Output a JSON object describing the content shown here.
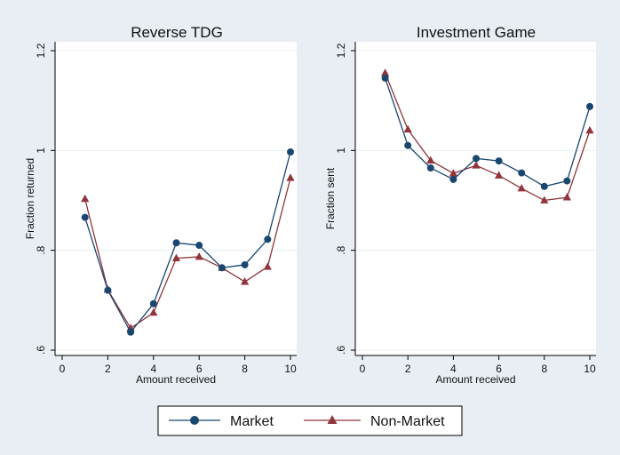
{
  "chart_data": [
    {
      "type": "line",
      "title": "Reverse TDG",
      "xlabel": "Amount received",
      "ylabel": "Fraction returned",
      "xlim": [
        0,
        10
      ],
      "ylim": [
        0.6,
        1.2
      ],
      "xticks": [
        0,
        2,
        4,
        6,
        8,
        10
      ],
      "xtick_labels": [
        "0",
        "2",
        "4",
        "6",
        "8",
        "10"
      ],
      "yticks": [
        0.6,
        0.8,
        1.0,
        1.2
      ],
      "ytick_labels": [
        ".6",
        ".8",
        "1",
        "1.2"
      ],
      "x": [
        1,
        2,
        3,
        4,
        5,
        6,
        7,
        8,
        9,
        10
      ],
      "series": [
        {
          "name": "Market",
          "values": [
            0.866,
            0.72,
            0.636,
            0.693,
            0.815,
            0.81,
            0.765,
            0.771,
            0.822,
            0.997
          ]
        },
        {
          "name": "Non-Market",
          "values": [
            0.903,
            0.721,
            0.644,
            0.675,
            0.784,
            0.787,
            0.765,
            0.737,
            0.767,
            0.945
          ]
        }
      ]
    },
    {
      "type": "line",
      "title": "Investment Game",
      "xlabel": "Amount received",
      "ylabel": "Fraction sent",
      "xlim": [
        0,
        10
      ],
      "ylim": [
        0.6,
        1.2
      ],
      "xticks": [
        0,
        2,
        4,
        6,
        8,
        10
      ],
      "xtick_labels": [
        "0",
        "2",
        "4",
        "6",
        "8",
        "10"
      ],
      "yticks": [
        0.6,
        0.8,
        1.0,
        1.2
      ],
      "ytick_labels": [
        ".6",
        ".8",
        "1",
        "1.2"
      ],
      "x": [
        1,
        2,
        3,
        4,
        5,
        6,
        7,
        8,
        9,
        10
      ],
      "series": [
        {
          "name": "Market",
          "values": [
            1.145,
            1.01,
            0.965,
            0.942,
            0.984,
            0.979,
            0.955,
            0.928,
            0.939,
            1.088
          ]
        },
        {
          "name": "Non-Market",
          "values": [
            1.155,
            1.042,
            0.98,
            0.954,
            0.97,
            0.95,
            0.924,
            0.9,
            0.906,
            1.04
          ]
        }
      ]
    }
  ],
  "legend": {
    "items": [
      {
        "label": "Market",
        "marker": "circle"
      },
      {
        "label": "Non-Market",
        "marker": "triangle"
      }
    ],
    "placement": "bottom"
  },
  "colors": {
    "background": "#e8eef3",
    "plot_area": "#ffffff",
    "Market": "#1a476f",
    "Non-Market": "#90353b",
    "grid": "#e8eef3"
  }
}
